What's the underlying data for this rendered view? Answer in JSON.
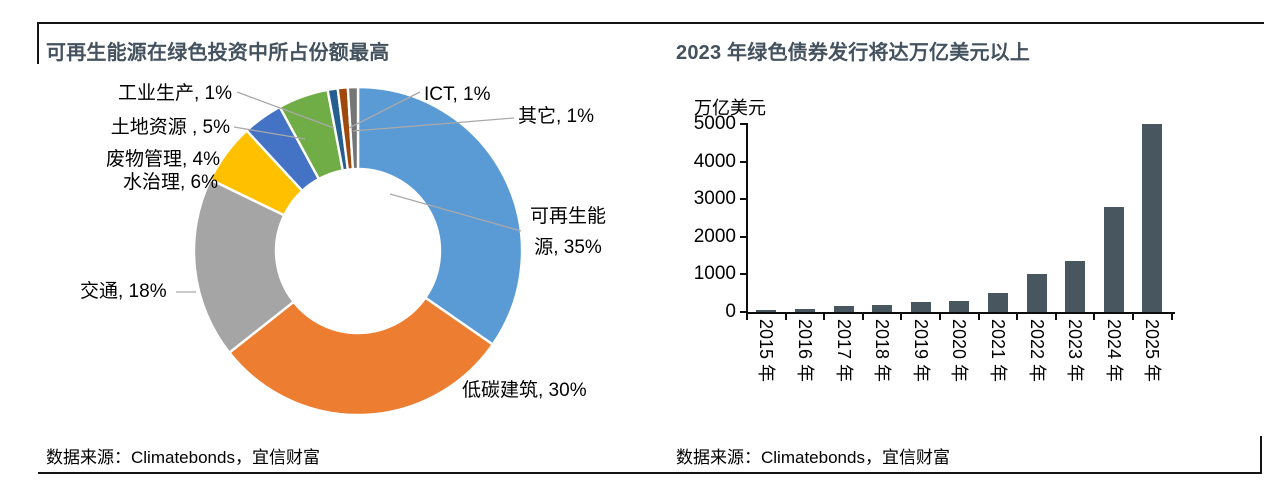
{
  "left_panel": {
    "title": "可再生能源在绿色投资中所占份额最高",
    "source": "数据来源：Climatebonds，宜信财富"
  },
  "right_panel": {
    "title": "2023 年绿色债券发行将达万亿美元以上",
    "unit_label": "万亿美元",
    "source": "数据来源：Climatebonds，宜信财富"
  },
  "colors": {
    "title_text": "#44525F",
    "bar": "#47565F",
    "leader_line": "#A9A9A9",
    "frame_line": "#141414"
  },
  "chart_data": [
    {
      "type": "pie",
      "subtype": "donut",
      "title": "可再生能源在绿色投资中所占份额最高",
      "legend_position": "none",
      "labels_outside": true,
      "slices": [
        {
          "label": "可再生能源",
          "value": 35,
          "display": "可再生能源, 35%",
          "color": "#5B9BD5"
        },
        {
          "label": "低碳建筑",
          "value": 30,
          "display": "低碳建筑, 30%",
          "color": "#ED7D31"
        },
        {
          "label": "交通",
          "value": 18,
          "display": "交通, 18%",
          "color": "#A5A5A5"
        },
        {
          "label": "水治理",
          "value": 6,
          "display": "水治理, 6%",
          "color": "#FFC000"
        },
        {
          "label": "废物管理",
          "value": 4,
          "display": "废物管理, 4%",
          "color": "#4472C4"
        },
        {
          "label": "土地资源",
          "value": 5,
          "display": "土地资源 , 5%",
          "color": "#70AD47"
        },
        {
          "label": "工业生产",
          "value": 1,
          "display": "工业生产, 1%",
          "color": "#255E91"
        },
        {
          "label": "ICT",
          "value": 1,
          "display": "ICT, 1%",
          "color": "#9E480E"
        },
        {
          "label": "其它",
          "value": 1,
          "display": "其它, 1%",
          "color": "#757575"
        }
      ]
    },
    {
      "type": "bar",
      "title": "2023 年绿色债券发行将达万亿美元以上",
      "ylabel": "万亿美元",
      "categories": [
        "2015 年",
        "2016 年",
        "2017 年",
        "2018 年",
        "2019 年",
        "2020 年",
        "2021 年",
        "2022 年",
        "2023 年",
        "2024 年",
        "2025 年"
      ],
      "values": [
        40,
        85,
        155,
        175,
        260,
        290,
        510,
        1000,
        1350,
        2800,
        5000
      ],
      "yticks": [
        0,
        1000,
        2000,
        3000,
        4000,
        5000
      ],
      "ylim": [
        0,
        5000
      ],
      "grid": false,
      "bar_color": "#47565F"
    }
  ]
}
